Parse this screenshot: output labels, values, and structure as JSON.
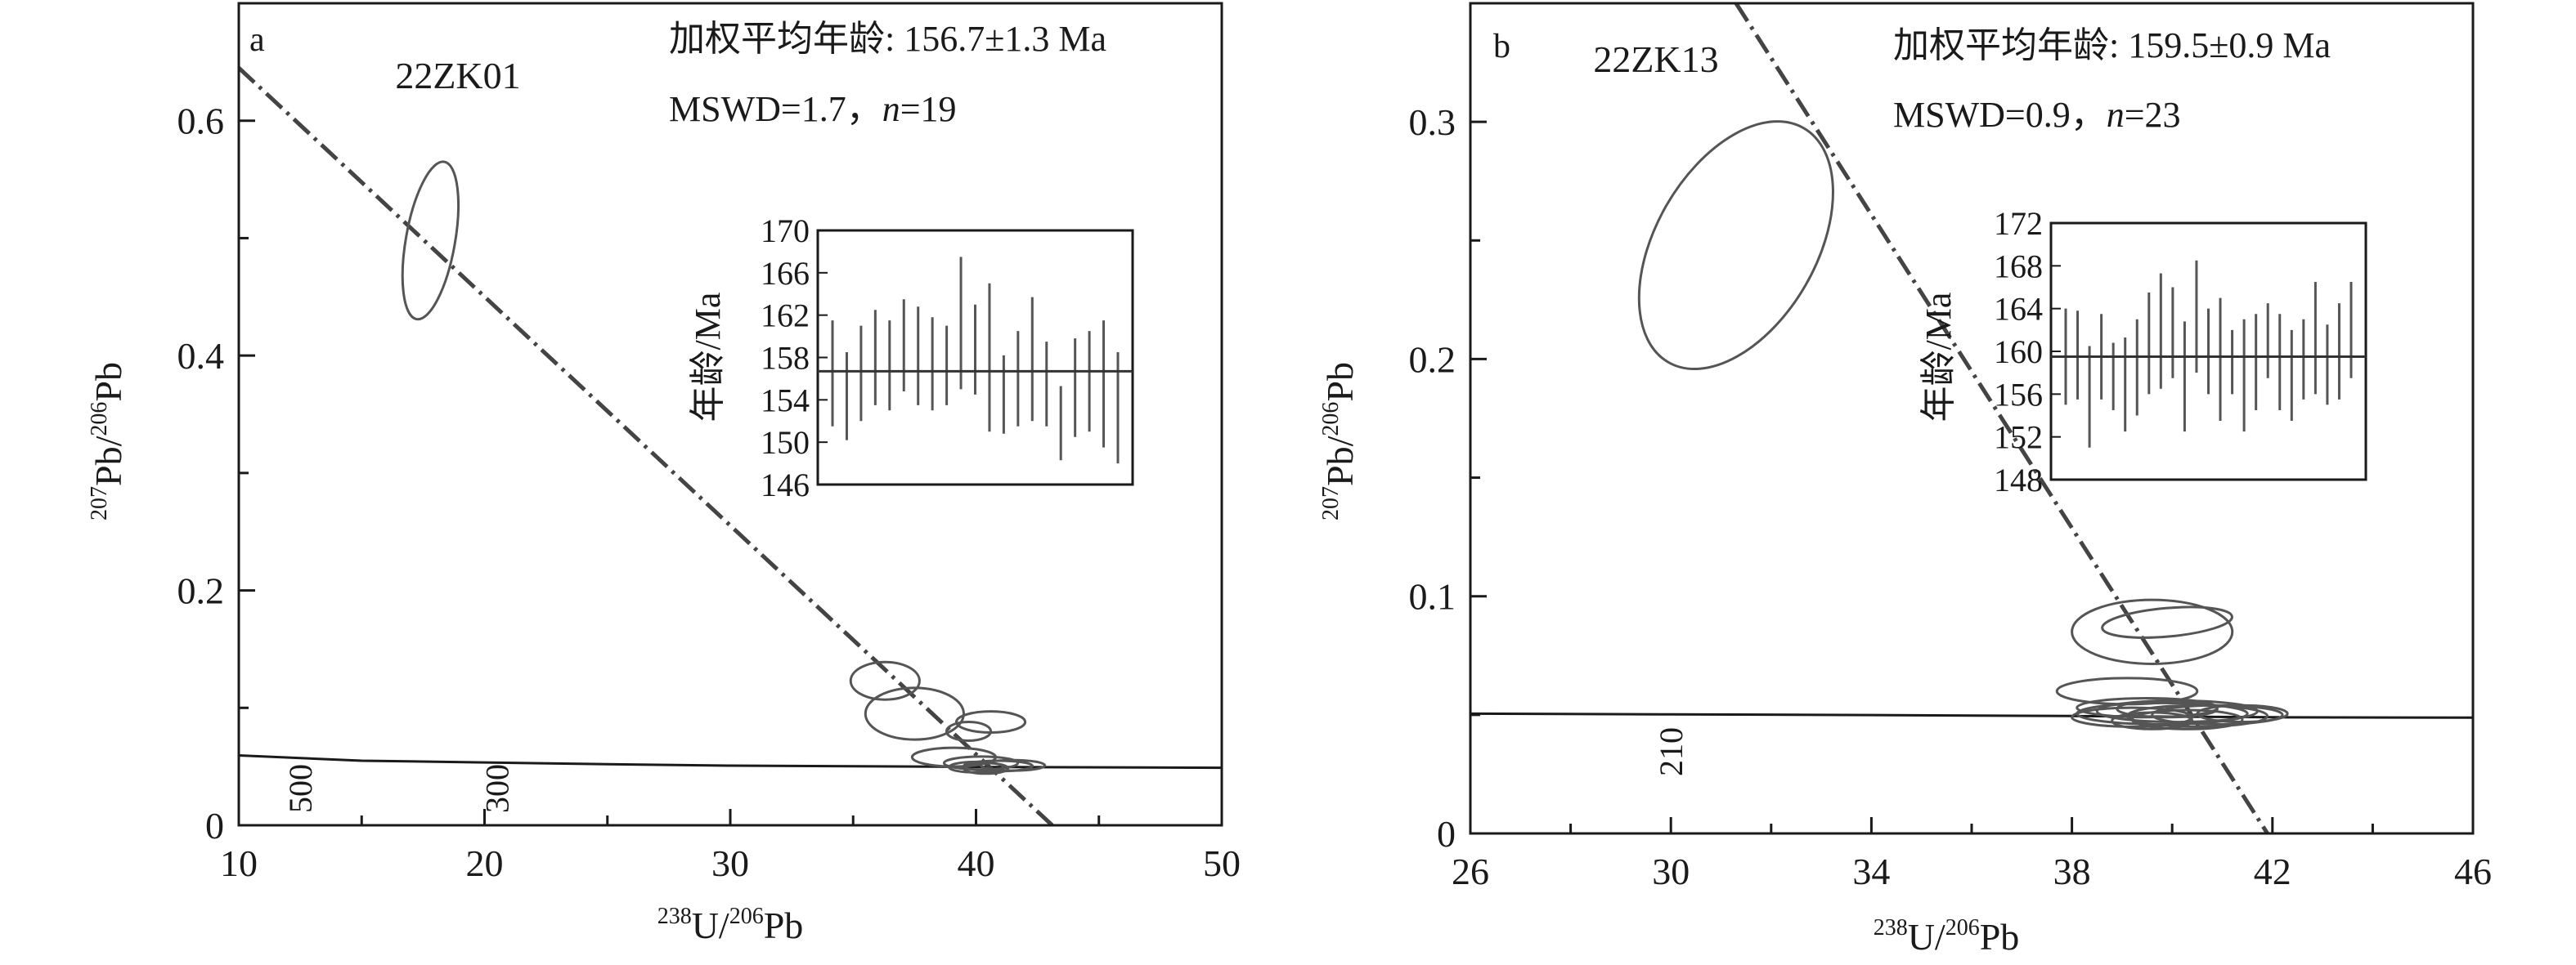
{
  "chart_data": [
    {
      "type": "scatter",
      "panel_label": "a",
      "sample": "22ZK01",
      "weighted_mean_label": "加权平均年龄: 156.7±1.3 Ma",
      "mswd_prefix": "MSWD=1.7，",
      "n_symbol": "n",
      "n_value": "=19",
      "xlabel": {
        "sup1": "238",
        "main1": "U/",
        "sup2": "206",
        "main2": "Pb"
      },
      "ylabel": {
        "sup1": "207",
        "main1": "Pb/",
        "sup2": "206",
        "main2": "Pb"
      },
      "xlim": [
        10,
        50
      ],
      "ylim": [
        0,
        0.7
      ],
      "xticks": [
        10,
        20,
        30,
        40,
        50
      ],
      "xtick_labels": [
        "10",
        "20",
        "30",
        "40",
        "50"
      ],
      "yticks": [
        0,
        0.2,
        0.4,
        0.6
      ],
      "ytick_labels": [
        "0",
        "0.2",
        "0.4",
        "0.6"
      ],
      "concordia_labels": [
        {
          "text": "500",
          "x": 12.5
        },
        {
          "text": "300",
          "x": 20.5
        }
      ],
      "concordia": [
        [
          10,
          0.0595
        ],
        [
          15,
          0.055
        ],
        [
          20,
          0.0535
        ],
        [
          25,
          0.052
        ],
        [
          30,
          0.0508
        ],
        [
          35,
          0.0503
        ],
        [
          40,
          0.0497
        ],
        [
          50,
          0.049
        ]
      ],
      "regression_line": [
        [
          10,
          0.645
        ],
        [
          43.1,
          0.0
        ]
      ],
      "ellipses": [
        {
          "cx": 17.8,
          "cy": 0.498,
          "rx": 1.0,
          "ry": 0.068,
          "angle": 10
        },
        {
          "cx": 36.3,
          "cy": 0.123,
          "rx": 1.4,
          "ry": 0.016,
          "angle": 0
        },
        {
          "cx": 37.5,
          "cy": 0.095,
          "rx": 2.0,
          "ry": 0.022,
          "angle": 0
        },
        {
          "cx": 40.6,
          "cy": 0.088,
          "rx": 1.4,
          "ry": 0.009,
          "angle": 0
        },
        {
          "cx": 39.7,
          "cy": 0.08,
          "rx": 0.9,
          "ry": 0.008,
          "angle": 0
        },
        {
          "cx": 39.1,
          "cy": 0.058,
          "rx": 1.7,
          "ry": 0.008,
          "angle": 0
        },
        {
          "cx": 40.2,
          "cy": 0.053,
          "rx": 1.5,
          "ry": 0.0055,
          "angle": 0
        },
        {
          "cx": 40.9,
          "cy": 0.0505,
          "rx": 1.4,
          "ry": 0.0045,
          "angle": 0
        },
        {
          "cx": 40.0,
          "cy": 0.0495,
          "rx": 1.1,
          "ry": 0.0045,
          "angle": 0
        },
        {
          "cx": 41.5,
          "cy": 0.051,
          "rx": 1.3,
          "ry": 0.0045,
          "angle": 0
        },
        {
          "cx": 40.4,
          "cy": 0.0485,
          "rx": 0.9,
          "ry": 0.0045,
          "angle": 0
        }
      ],
      "inset": {
        "ylabel": "年龄/Ma",
        "ylim": [
          146,
          170
        ],
        "yticks": [
          146,
          150,
          154,
          158,
          162,
          166,
          170
        ],
        "ytick_labels": [
          "146",
          "150",
          "154",
          "158",
          "162",
          "166",
          "170"
        ],
        "mean": 156.7,
        "bars": [
          [
            151.5,
            161.5
          ],
          [
            150.2,
            158.5
          ],
          [
            152.0,
            161.0
          ],
          [
            153.5,
            162.5
          ],
          [
            153.0,
            161.5
          ],
          [
            154.8,
            163.5
          ],
          [
            153.5,
            162.8
          ],
          [
            153.0,
            161.8
          ],
          [
            153.5,
            161.0
          ],
          [
            155.0,
            167.5
          ],
          [
            154.5,
            163.0
          ],
          [
            151.0,
            165.0
          ],
          [
            150.8,
            158.2
          ],
          [
            151.5,
            160.5
          ],
          [
            152.0,
            163.7
          ],
          [
            151.5,
            159.5
          ],
          [
            148.3,
            155.3
          ],
          [
            150.5,
            159.8
          ],
          [
            151.0,
            160.5
          ],
          [
            149.5,
            161.5
          ],
          [
            148.0,
            158.5
          ]
        ]
      }
    },
    {
      "type": "scatter",
      "panel_label": "b",
      "sample": "22ZK13",
      "weighted_mean_label": "加权平均年龄: 159.5±0.9 Ma",
      "mswd_prefix": "MSWD=0.9，",
      "n_symbol": "n",
      "n_value": "=23",
      "xlabel": {
        "sup1": "238",
        "main1": "U/",
        "sup2": "206",
        "main2": "Pb"
      },
      "ylabel": {
        "sup1": "207",
        "main1": "Pb/",
        "sup2": "206",
        "main2": "Pb"
      },
      "xlim": [
        26,
        46
      ],
      "ylim": [
        0,
        0.35
      ],
      "xticks": [
        26,
        30,
        34,
        38,
        42,
        46
      ],
      "xtick_labels": [
        "26",
        "30",
        "34",
        "38",
        "42",
        "46"
      ],
      "yticks": [
        0,
        0.1,
        0.2,
        0.3
      ],
      "ytick_labels": [
        "0",
        "0.1",
        "0.2",
        "0.3"
      ],
      "concordia_labels": [
        {
          "text": "210",
          "x": 30.0
        }
      ],
      "concordia": [
        [
          26,
          0.0505
        ],
        [
          30,
          0.0502
        ],
        [
          34,
          0.0499
        ],
        [
          38,
          0.0495
        ],
        [
          42,
          0.049
        ],
        [
          46,
          0.0488
        ]
      ],
      "regression_line": [
        [
          31.3,
          0.35
        ],
        [
          41.9,
          0.0
        ]
      ],
      "ellipses": [
        {
          "cx": 31.3,
          "cy": 0.248,
          "rx": 1.6,
          "ry": 0.057,
          "angle": 30
        },
        {
          "cx": 39.6,
          "cy": 0.085,
          "rx": 1.6,
          "ry": 0.0135,
          "angle": 0
        },
        {
          "cx": 39.9,
          "cy": 0.089,
          "rx": 1.3,
          "ry": 0.006,
          "angle": -5
        },
        {
          "cx": 39.1,
          "cy": 0.06,
          "rx": 1.4,
          "ry": 0.0055,
          "angle": 0
        },
        {
          "cx": 39.5,
          "cy": 0.053,
          "rx": 1.4,
          "ry": 0.004,
          "angle": 0
        },
        {
          "cx": 40.1,
          "cy": 0.0515,
          "rx": 1.6,
          "ry": 0.0045,
          "angle": 0
        },
        {
          "cx": 39.8,
          "cy": 0.0505,
          "rx": 1.7,
          "ry": 0.0045,
          "angle": 0
        },
        {
          "cx": 40.5,
          "cy": 0.0495,
          "rx": 1.4,
          "ry": 0.0045,
          "angle": 0
        },
        {
          "cx": 39.2,
          "cy": 0.049,
          "rx": 1.2,
          "ry": 0.004,
          "angle": 0
        },
        {
          "cx": 40.9,
          "cy": 0.05,
          "rx": 1.3,
          "ry": 0.004,
          "angle": 0
        },
        {
          "cx": 40.3,
          "cy": 0.048,
          "rx": 1.1,
          "ry": 0.004,
          "angle": 0
        },
        {
          "cx": 39.9,
          "cy": 0.0525,
          "rx": 1.0,
          "ry": 0.0035,
          "angle": 0
        },
        {
          "cx": 41.4,
          "cy": 0.0505,
          "rx": 0.9,
          "ry": 0.0035,
          "angle": 0
        },
        {
          "cx": 39.6,
          "cy": 0.0475,
          "rx": 0.8,
          "ry": 0.0035,
          "angle": 0
        }
      ],
      "inset": {
        "ylabel": "年龄/Ma",
        "ylim": [
          148,
          172
        ],
        "yticks": [
          148,
          152,
          156,
          160,
          164,
          168,
          172
        ],
        "ytick_labels": [
          "148",
          "152",
          "156",
          "160",
          "164",
          "168",
          "172"
        ],
        "mean": 159.5,
        "bars": [
          [
            155.0,
            164.0
          ],
          [
            155.5,
            163.8
          ],
          [
            151.0,
            160.5
          ],
          [
            155.5,
            163.5
          ],
          [
            154.5,
            160.8
          ],
          [
            152.5,
            161.3
          ],
          [
            154.0,
            163.0
          ],
          [
            156.0,
            165.5
          ],
          [
            156.5,
            167.3
          ],
          [
            157.5,
            166.0
          ],
          [
            152.5,
            162.8
          ],
          [
            158.0,
            168.5
          ],
          [
            156.0,
            164.0
          ],
          [
            153.5,
            165.0
          ],
          [
            156.0,
            162.0
          ],
          [
            152.5,
            163.0
          ],
          [
            154.5,
            163.5
          ],
          [
            157.5,
            164.5
          ],
          [
            154.5,
            163.5
          ],
          [
            153.5,
            162.0
          ],
          [
            155.5,
            163.0
          ],
          [
            156.0,
            166.5
          ],
          [
            155.0,
            162.5
          ],
          [
            155.5,
            164.5
          ],
          [
            157.5,
            166.5
          ]
        ]
      }
    }
  ]
}
